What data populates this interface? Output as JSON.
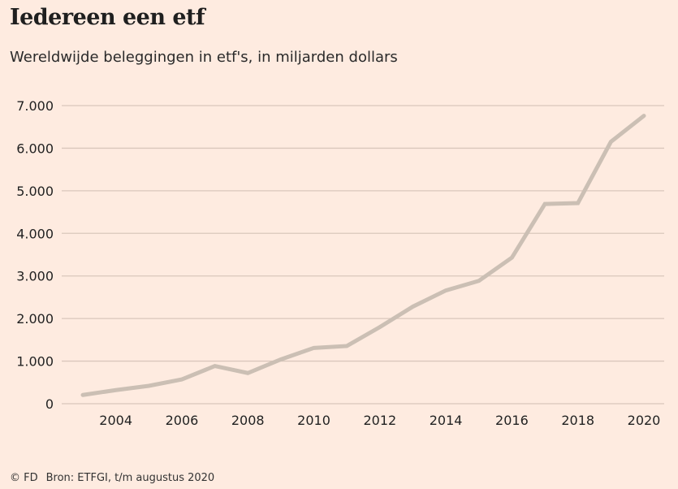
{
  "title": "Iedereen een etf",
  "subtitle": "Wereldwijde beleggingen in etf's, in miljarden dollars",
  "footer": {
    "credit": "© FD",
    "source": "Bron:  ETFGI, t/m augustus 2020"
  },
  "colors": {
    "background": "#feebe0",
    "line": "#cbbfb4",
    "grid": "#d9c7bb"
  },
  "chart_data": {
    "type": "line",
    "title": "Iedereen een etf",
    "subtitle": "Wereldwijde beleggingen in etf's, in miljarden dollars",
    "xlabel": "",
    "ylabel": "",
    "x": [
      2003,
      2004,
      2005,
      2006,
      2007,
      2008,
      2009,
      2010,
      2011,
      2012,
      2013,
      2014,
      2015,
      2016,
      2017,
      2018,
      2019,
      2020
    ],
    "values": [
      205,
      320,
      420,
      570,
      885,
      720,
      1040,
      1310,
      1355,
      1800,
      2280,
      2660,
      2885,
      3430,
      4690,
      4710,
      6150,
      6760
    ],
    "xlim": [
      2003,
      2020
    ],
    "ylim": [
      0,
      7000
    ],
    "x_ticks": [
      2004,
      2006,
      2008,
      2010,
      2012,
      2014,
      2016,
      2018,
      2020
    ],
    "x_tick_labels": [
      "2004",
      "2006",
      "2008",
      "2010",
      "2012",
      "2014",
      "2016",
      "2018",
      "2020"
    ],
    "y_ticks": [
      0,
      1000,
      2000,
      3000,
      4000,
      5000,
      6000,
      7000
    ],
    "y_tick_labels": [
      "0",
      "1.000",
      "2.000",
      "3.000",
      "4.000",
      "5.000",
      "6.000",
      "7.000"
    ],
    "grid": true,
    "legend": "none"
  }
}
